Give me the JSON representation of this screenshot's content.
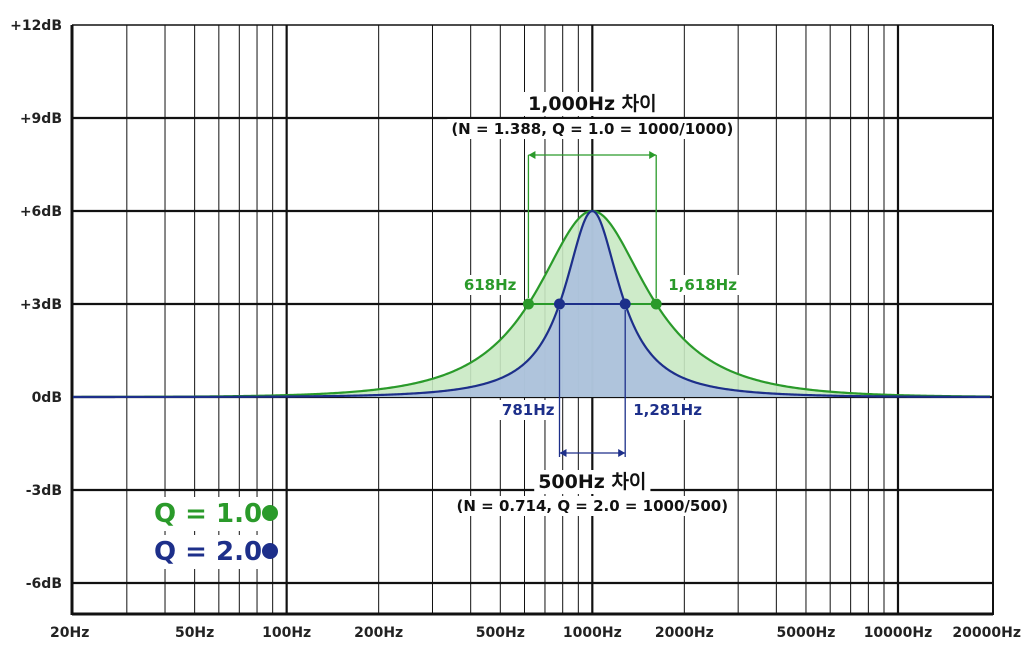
{
  "chart_data": {
    "type": "area",
    "x_scale": "log",
    "xlim": [
      20,
      20000
    ],
    "ylim": [
      -7,
      12
    ],
    "grid": true,
    "x_ticks": [
      {
        "value": 20,
        "label": "20Hz"
      },
      {
        "value": 50,
        "label": "50Hz"
      },
      {
        "value": 100,
        "label": "100Hz"
      },
      {
        "value": 200,
        "label": "200Hz"
      },
      {
        "value": 500,
        "label": "500Hz"
      },
      {
        "value": 1000,
        "label": "1000Hz"
      },
      {
        "value": 2000,
        "label": "2000Hz"
      },
      {
        "value": 5000,
        "label": "5000Hz"
      },
      {
        "value": 10000,
        "label": "10000Hz"
      },
      {
        "value": 20000,
        "label": "20000Hz"
      }
    ],
    "y_ticks": [
      {
        "value": 12,
        "label": "+12dB"
      },
      {
        "value": 9,
        "label": "+9dB"
      },
      {
        "value": 6,
        "label": "+6dB"
      },
      {
        "value": 3,
        "label": "+3dB"
      },
      {
        "value": 0,
        "label": "0dB"
      },
      {
        "value": -3,
        "label": "-3dB"
      },
      {
        "value": -6,
        "label": "-6dB"
      }
    ],
    "series": [
      {
        "q": 1.0,
        "color": "#2a9a2a",
        "fill": "#c9e9c3",
        "center_hz": 1000,
        "gain_db": 6,
        "points_3db": [
          618,
          1618
        ],
        "point_labels": [
          "618Hz",
          "1,618Hz"
        ]
      },
      {
        "q": 2.0,
        "color": "#1d2f8a",
        "fill": "#a9bddf",
        "center_hz": 1000,
        "gain_db": 6,
        "points_3db": [
          781,
          1281
        ],
        "point_labels": [
          "781Hz",
          "1,281Hz"
        ]
      }
    ],
    "annotations": {
      "green_title": "1,000Hz 차이",
      "green_sub": "(N = 1.388, Q = 1.0 = 1000/1000)",
      "blue_title": "500Hz 차이",
      "blue_sub": "(N = 0.714, Q = 2.0 = 1000/500)"
    },
    "legend": {
      "placement": "bottom-left",
      "items": [
        {
          "label": "Q = 1.0",
          "color": "#2a9a2a"
        },
        {
          "label": "Q = 2.0",
          "color": "#1d2f8a"
        }
      ]
    }
  }
}
